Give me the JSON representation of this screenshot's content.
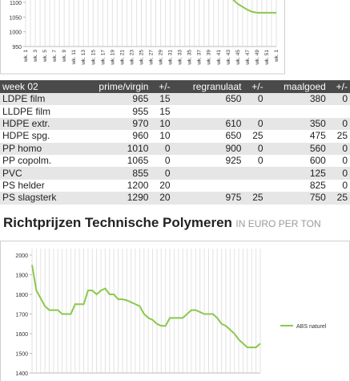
{
  "chart_data": [
    {
      "type": "line",
      "categories": [
        "wk. 1",
        null,
        "wk. 3",
        null,
        "wk. 5",
        null,
        "wk. 7",
        null,
        "wk. 9",
        null,
        "wk. 11",
        null,
        "wk. 13",
        null,
        "wk. 15",
        null,
        "wk. 17",
        null,
        "wk. 19",
        null,
        "wk. 21",
        null,
        "wk. 23",
        null,
        "wk. 25",
        null,
        "wk. 27",
        null,
        "wk. 29",
        null,
        "wk. 31",
        null,
        "wk. 33",
        null,
        "wk. 35",
        null,
        "wk. 37",
        null,
        "wk. 39",
        null,
        "wk. 41",
        null,
        "wk. 43",
        null,
        "wk. 45",
        null,
        "wk. 47",
        null,
        "wk. 49",
        null,
        "wk. 51",
        null,
        "wk. 1"
      ],
      "values": [
        null,
        null,
        null,
        null,
        null,
        null,
        null,
        null,
        null,
        null,
        null,
        null,
        null,
        null,
        null,
        null,
        null,
        null,
        null,
        null,
        null,
        null,
        null,
        null,
        null,
        null,
        null,
        null,
        null,
        null,
        null,
        null,
        null,
        null,
        null,
        null,
        null,
        null,
        null,
        null,
        null,
        null,
        null,
        1110,
        1095,
        1085,
        1075,
        1068,
        1065,
        1065,
        1065,
        1065,
        1065
      ],
      "color": "#8cc84b",
      "ylim": [
        950,
        1100
      ],
      "yticks": [
        950,
        1000,
        1050,
        1100
      ]
    },
    {
      "type": "line",
      "series": [
        {
          "name": "ABS naturel",
          "color": "#8cc84b",
          "values": [
            1950,
            1820,
            1780,
            1740,
            1720,
            1720,
            1720,
            1700,
            1700,
            1700,
            1750,
            1750,
            1750,
            1820,
            1820,
            1800,
            1820,
            1830,
            1800,
            1800,
            1775,
            1775,
            1770,
            1760,
            1750,
            1740,
            1700,
            1680,
            1670,
            1650,
            1640,
            1640,
            1680,
            1680,
            1680,
            1680,
            1700,
            1720,
            1720,
            1710,
            1700,
            1700,
            1700,
            1680,
            1650,
            1640,
            1620,
            1600,
            1570,
            1550,
            1530,
            1530,
            1530,
            1550
          ]
        }
      ],
      "ylim": [
        1400,
        2000
      ],
      "yticks": [
        1400,
        1500,
        1600,
        1700,
        1800,
        1900,
        2000
      ]
    }
  ],
  "table": {
    "header": [
      "week 02",
      "prime/virgin",
      "+/-",
      "regranulaat",
      "+/-",
      "maalgoed",
      "+/-"
    ],
    "rows": [
      [
        "LDPE film",
        "965",
        "15",
        "650",
        "0",
        "380",
        "0"
      ],
      [
        "LLDPE film",
        "955",
        "15",
        null,
        null,
        null,
        null
      ],
      [
        "HDPE extr.",
        "970",
        "10",
        "610",
        "0",
        "350",
        "0"
      ],
      [
        "HDPE spg.",
        "960",
        "10",
        "650",
        "25",
        "475",
        "25"
      ],
      [
        "PP homo",
        "1010",
        "0",
        "900",
        "0",
        "560",
        "0"
      ],
      [
        "PP copolm.",
        "1065",
        "0",
        "925",
        "0",
        "600",
        "0"
      ],
      [
        "PVC",
        "855",
        "0",
        null,
        null,
        "125",
        "0"
      ],
      [
        "PS helder",
        "1200",
        "20",
        null,
        null,
        "825",
        "0"
      ],
      [
        "PS slagsterk",
        "1290",
        "20",
        "975",
        "25",
        "750",
        "25"
      ]
    ]
  },
  "heading": {
    "title": "Richtprijzen Technische Polymeren",
    "subtitle": "IN EURO PER TON"
  }
}
